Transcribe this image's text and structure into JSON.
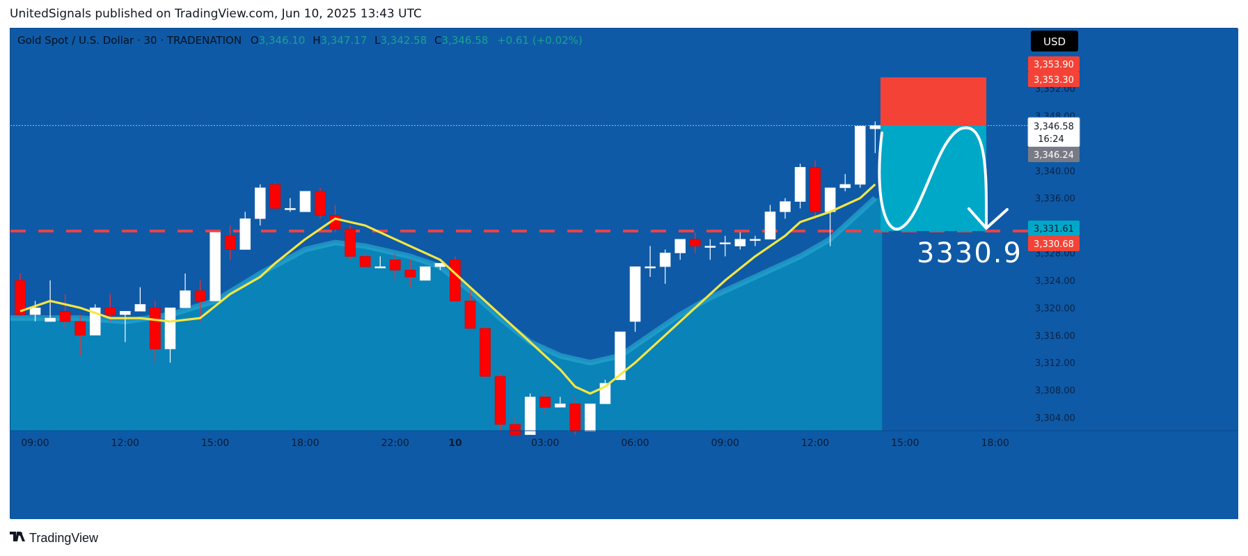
{
  "header": {
    "published_text": "UnitedSignals published on TradingView.com, Jun 10, 2025 13:43 UTC"
  },
  "footer": {
    "logo_text": "TradingView"
  },
  "legend": {
    "symbol": "Gold Spot / U.S. Dollar · 30 · TRADENATION",
    "o_label": "O",
    "o_value": "3,346.10",
    "h_label": "H",
    "h_value": "3,347.17",
    "l_label": "L",
    "l_value": "3,342.58",
    "c_label": "C",
    "c_value": "3,346.58",
    "change": "+0.61 (+0.02%)"
  },
  "currency_button": "USD",
  "price_tags": {
    "stop_upper": "3,353.90",
    "stop_lower": "3,353.30",
    "last_price": "3,346.58",
    "countdown": "16:24",
    "prev_price": "3,346.24",
    "target_upper": "3,331.61",
    "target_lower": "3,330.68"
  },
  "annotation": "3330.9",
  "colors": {
    "background": "#0f5aa6",
    "bull_candle": "#ffffff",
    "bear_candle": "#ff0000",
    "ma_line": "#f5e642",
    "area_fill": "#0b86b8",
    "level_line": "#e8424a",
    "stop_box": "#f44336",
    "target_box": "#00a8c8"
  },
  "chart_data": {
    "type": "candlestick",
    "ylim": [
      3301,
      3357
    ],
    "y_ticks": [
      "3,304.00",
      "3,308.00",
      "3,312.00",
      "3,316.00",
      "3,320.00",
      "3,324.00",
      "3,328.00",
      "3,332.00",
      "3,336.00",
      "3,340.00",
      "3,344.00",
      "3,348.00",
      "3,352.00"
    ],
    "x_ticks": [
      "09:00",
      "12:00",
      "15:00",
      "18:00",
      "22:00",
      "10",
      "03:00",
      "06:00",
      "09:00",
      "12:00",
      "15:00",
      "18:00"
    ],
    "x_tick_bar_index": [
      1,
      7,
      13,
      19,
      25,
      29,
      35,
      41,
      47,
      53,
      59,
      65
    ],
    "candles": [
      [
        3324,
        3325,
        3319,
        3319
      ],
      [
        3319,
        3321,
        3318,
        3320
      ],
      [
        3318,
        3324,
        3318,
        3318.5
      ],
      [
        3319.5,
        3322,
        3317,
        3318
      ],
      [
        3318,
        3319,
        3313,
        3316
      ],
      [
        3316,
        3320.5,
        3316,
        3320
      ],
      [
        3320,
        3322,
        3318,
        3319
      ],
      [
        3319,
        3319.5,
        3315,
        3319.5
      ],
      [
        3319.5,
        3323,
        3319.5,
        3320.5
      ],
      [
        3320,
        3321,
        3312,
        3314
      ],
      [
        3314,
        3320,
        3312,
        3320
      ],
      [
        3320,
        3325,
        3320,
        3322.5
      ],
      [
        3322.5,
        3324,
        3318,
        3321
      ],
      [
        3321,
        3331,
        3321,
        3331
      ],
      [
        3330.5,
        3332,
        3327,
        3328.5
      ],
      [
        3328.5,
        3334,
        3328.5,
        3333
      ],
      [
        3333,
        3338,
        3332,
        3337.5
      ],
      [
        3338,
        3338.2,
        3334.5,
        3334.5
      ],
      [
        3334.5,
        3336,
        3334,
        3334.5
      ],
      [
        3334,
        3337,
        3334,
        3337
      ],
      [
        3337,
        3337.5,
        3333,
        3333.5
      ],
      [
        3333.5,
        3335,
        3331,
        3331.5
      ],
      [
        3331.5,
        3332,
        3327,
        3327.5
      ],
      [
        3327.5,
        3328,
        3326,
        3326
      ],
      [
        3326,
        3327.5,
        3326,
        3326
      ],
      [
        3327,
        3328,
        3324,
        3325.5
      ],
      [
        3325.5,
        3327,
        3323,
        3324.5
      ],
      [
        3324,
        3326,
        3324,
        3326
      ],
      [
        3326,
        3326.5,
        3325.5,
        3326.5
      ],
      [
        3327,
        3327.5,
        3321,
        3321
      ],
      [
        3321,
        3322.5,
        3317,
        3317
      ],
      [
        3317,
        3317.5,
        3309.5,
        3310
      ],
      [
        3310,
        3310.5,
        3302,
        3303
      ],
      [
        3303,
        3304,
        3301.5,
        3301.5
      ],
      [
        3301.5,
        3307.5,
        3301.5,
        3307
      ],
      [
        3307,
        3307.5,
        3304.5,
        3305.5
      ],
      [
        3305.5,
        3307,
        3305.5,
        3306
      ],
      [
        3306,
        3307,
        3301.5,
        3302
      ],
      [
        3302,
        3306,
        3302,
        3306
      ],
      [
        3306,
        3309.5,
        3306,
        3309
      ],
      [
        3309.5,
        3316.5,
        3309.5,
        3316.5
      ],
      [
        3318,
        3326,
        3316.5,
        3326
      ],
      [
        3326,
        3329,
        3324.5,
        3326
      ],
      [
        3326,
        3328.5,
        3323.5,
        3328
      ],
      [
        3328,
        3330,
        3327,
        3330
      ],
      [
        3330,
        3331,
        3328,
        3329
      ],
      [
        3329,
        3330,
        3327,
        3329
      ],
      [
        3329.5,
        3330.5,
        3327.5,
        3329.5
      ],
      [
        3329,
        3331,
        3328.5,
        3330
      ],
      [
        3330,
        3330.5,
        3329,
        3330
      ],
      [
        3330,
        3335,
        3330,
        3334
      ],
      [
        3334,
        3336,
        3333,
        3335.5
      ],
      [
        3335.5,
        3341,
        3334.5,
        3340.5
      ],
      [
        3340.5,
        3341.5,
        3333,
        3334
      ],
      [
        3334,
        3337.5,
        3329,
        3337.5
      ],
      [
        3337.5,
        3339.5,
        3337,
        3338
      ],
      [
        3338,
        3346.5,
        3337.5,
        3346.5
      ],
      [
        3346.1,
        3347.17,
        3342.58,
        3346.58
      ]
    ],
    "ma_line": [
      [
        0,
        3319.5
      ],
      [
        2,
        3321
      ],
      [
        4,
        3320
      ],
      [
        6,
        3318.5
      ],
      [
        8,
        3318.5
      ],
      [
        10,
        3318
      ],
      [
        12,
        3318.5
      ],
      [
        14,
        3322
      ],
      [
        16,
        3324.5
      ],
      [
        17,
        3326.5
      ],
      [
        19,
        3330
      ],
      [
        21,
        3333
      ],
      [
        23,
        3332
      ],
      [
        25,
        3330
      ],
      [
        26,
        3329
      ],
      [
        28,
        3327
      ],
      [
        30,
        3323
      ],
      [
        32,
        3319
      ],
      [
        34,
        3315
      ],
      [
        36,
        3311
      ],
      [
        37,
        3308.5
      ],
      [
        38,
        3307.5
      ],
      [
        39,
        3308.5
      ],
      [
        41,
        3312
      ],
      [
        43,
        3316
      ],
      [
        45,
        3320
      ],
      [
        47,
        3324
      ],
      [
        49,
        3327.5
      ],
      [
        51,
        3330.5
      ],
      [
        52,
        3332.5
      ],
      [
        54,
        3334
      ],
      [
        56,
        3336
      ],
      [
        57,
        3338
      ]
    ],
    "area_top": [
      [
        0,
        3318.5
      ],
      [
        4,
        3318.5
      ],
      [
        7,
        3318
      ],
      [
        10,
        3319
      ],
      [
        13,
        3321
      ],
      [
        16,
        3325
      ],
      [
        19,
        3328.5
      ],
      [
        21,
        3329.5
      ],
      [
        23,
        3329
      ],
      [
        26,
        3327.5
      ],
      [
        28,
        3326
      ],
      [
        30,
        3322.5
      ],
      [
        32,
        3318.5
      ],
      [
        34,
        3315
      ],
      [
        36,
        3313
      ],
      [
        38,
        3312
      ],
      [
        40,
        3313
      ],
      [
        42,
        3316
      ],
      [
        44,
        3319
      ],
      [
        46,
        3321.5
      ],
      [
        48,
        3323.5
      ],
      [
        50,
        3325.5
      ],
      [
        52,
        3327.5
      ],
      [
        54,
        3330
      ],
      [
        56,
        3334
      ],
      [
        57,
        3336
      ]
    ],
    "horizontal_level": 3331.2,
    "position": {
      "entry": 3346.58,
      "stop": 3353.6,
      "target": 3331.2
    }
  }
}
